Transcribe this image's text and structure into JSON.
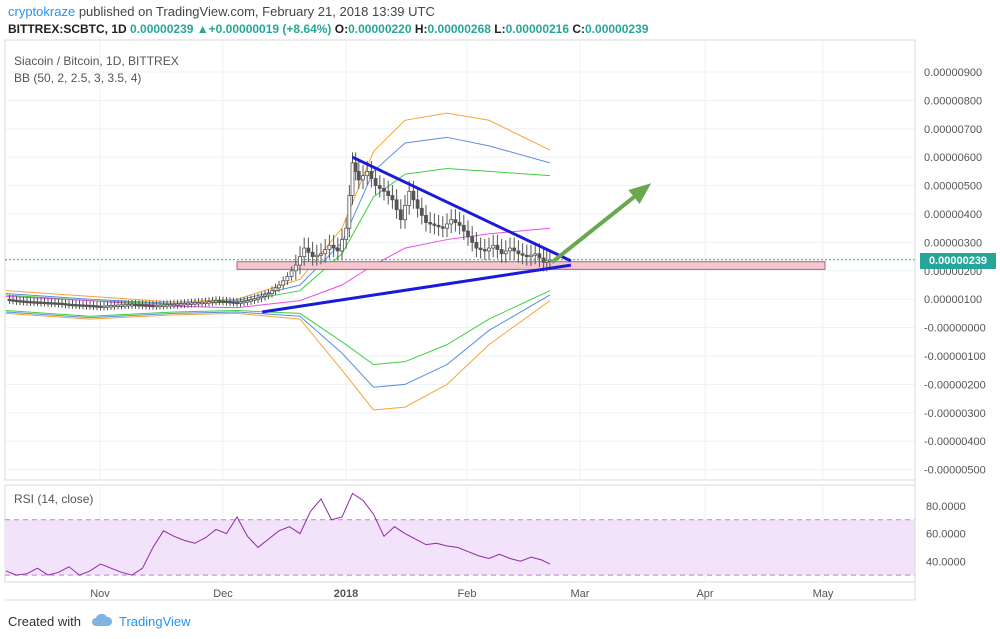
{
  "header": {
    "author": "cryptokraze",
    "published": "published on TradingView.com, February 21, 2018 13:39 UTC",
    "symbol": "BITTREX:SCBTC, 1D",
    "last": "0.00000239",
    "change": "+0.00000019 (+8.64%)",
    "o_label": "O:",
    "o": "0.00000220",
    "h_label": "H:",
    "h": "0.00000268",
    "l_label": "L:",
    "l": "0.00000216",
    "c_label": "C:",
    "c": "0.00000239"
  },
  "pane": {
    "title": "Siacoin / Bitcoin, 1D, BITTREX",
    "indicator": "BB (50, 2, 2.5, 3, 3.5, 4)",
    "rsi_label": "RSI (14, close)"
  },
  "price_tag": "0.00000239",
  "footer": {
    "created": "Created with",
    "brand": "TradingView"
  },
  "colors": {
    "candle": "#555555",
    "trendline": "#1a1adb",
    "arrow": "#6aa84f",
    "zone_fill": "#f4c7cf",
    "zone_stroke": "#b0606e",
    "price_line": "#26a69a",
    "bb_orange": "#f5a33b",
    "bb_blue": "#5b8fdc",
    "bb_green": "#3ed13e",
    "bb_magenta": "#e84ce8",
    "rsi": "#8e2aa0",
    "rsi_band": "#f3e3fa"
  },
  "chart_data": [
    {
      "type": "candlestick",
      "title": "Siacoin / Bitcoin, 1D, BITTREX",
      "x_ticks": [
        "Nov",
        "Dec",
        "2018",
        "Feb",
        "Mar",
        "Apr",
        "May"
      ],
      "y_ticks": [
        "0.00000900",
        "0.00000800",
        "0.00000700",
        "0.00000600",
        "0.00000500",
        "0.00000400",
        "0.00000300",
        "0.00000200",
        "0.00000100",
        "-0.00000000",
        "-0.00000100",
        "-0.00000200",
        "-0.00000300",
        "-0.00000400",
        "-0.00000500"
      ],
      "ylim": [
        -5.5e-06,
        9.3e-06
      ],
      "close_series": [
        [
          0,
          1.0
        ],
        [
          5,
          0.95
        ],
        [
          10,
          0.92
        ],
        [
          15,
          0.9
        ],
        [
          20,
          0.88
        ],
        [
          25,
          0.86
        ],
        [
          30,
          0.82
        ],
        [
          35,
          0.8
        ],
        [
          40,
          0.78
        ],
        [
          45,
          0.75
        ],
        [
          50,
          0.78
        ],
        [
          55,
          0.8
        ],
        [
          60,
          0.82
        ],
        [
          65,
          0.8
        ],
        [
          70,
          0.78
        ],
        [
          75,
          0.8
        ],
        [
          80,
          0.82
        ],
        [
          85,
          0.85
        ],
        [
          90,
          0.88
        ],
        [
          95,
          0.9
        ],
        [
          100,
          0.95
        ],
        [
          105,
          0.92
        ],
        [
          110,
          0.88
        ],
        [
          115,
          0.95
        ],
        [
          120,
          1.05
        ],
        [
          125,
          1.2
        ],
        [
          130,
          1.5
        ],
        [
          134,
          1.8
        ],
        [
          138,
          2.2
        ],
        [
          142,
          2.8
        ],
        [
          146,
          2.5
        ],
        [
          150,
          2.6
        ],
        [
          154,
          2.9
        ],
        [
          158,
          2.7
        ],
        [
          162,
          3.5
        ],
        [
          165,
          5.8
        ],
        [
          168,
          5.2
        ],
        [
          172,
          5.5
        ],
        [
          176,
          5.0
        ],
        [
          180,
          4.8
        ],
        [
          184,
          4.5
        ],
        [
          188,
          3.8
        ],
        [
          192,
          4.8
        ],
        [
          196,
          4.2
        ],
        [
          200,
          3.7
        ],
        [
          204,
          3.6
        ],
        [
          208,
          3.5
        ],
        [
          212,
          3.8
        ],
        [
          216,
          3.6
        ],
        [
          220,
          3.2
        ],
        [
          224,
          2.8
        ],
        [
          228,
          2.7
        ],
        [
          232,
          2.9
        ],
        [
          236,
          2.6
        ],
        [
          240,
          2.8
        ],
        [
          244,
          2.6
        ],
        [
          248,
          2.5
        ],
        [
          252,
          2.6
        ],
        [
          256,
          2.3
        ],
        [
          259,
          2.39
        ]
      ],
      "trendlines": [
        {
          "name": "upper-trendline",
          "from": [
            165,
            6.0
          ],
          "to": [
            269,
            2.35
          ]
        },
        {
          "name": "lower-trendline",
          "from": [
            122,
            0.55
          ],
          "to": [
            269,
            2.2
          ]
        }
      ],
      "support_zone": {
        "from_x": 110,
        "to_x": 390,
        "y_low": 2.05,
        "y_high": 2.32
      },
      "projection_arrow": {
        "from": [
          260,
          2.3
        ],
        "to": [
          305,
          4.95
        ]
      },
      "bollinger": {
        "orange_upper": [
          [
            0,
            1.3
          ],
          [
            40,
            1.1
          ],
          [
            80,
            0.9
          ],
          [
            110,
            1.0
          ],
          [
            140,
            1.7
          ],
          [
            160,
            3.5
          ],
          [
            175,
            6.2
          ],
          [
            190,
            7.3
          ],
          [
            210,
            7.55
          ],
          [
            230,
            7.3
          ],
          [
            259,
            6.25
          ]
        ],
        "blue_upper": [
          [
            0,
            1.2
          ],
          [
            40,
            1.0
          ],
          [
            80,
            0.85
          ],
          [
            110,
            0.95
          ],
          [
            140,
            1.5
          ],
          [
            160,
            3.0
          ],
          [
            175,
            5.5
          ],
          [
            190,
            6.5
          ],
          [
            210,
            6.7
          ],
          [
            230,
            6.4
          ],
          [
            259,
            5.8
          ]
        ],
        "green_upper": [
          [
            0,
            1.15
          ],
          [
            40,
            0.95
          ],
          [
            80,
            0.82
          ],
          [
            110,
            0.9
          ],
          [
            140,
            1.3
          ],
          [
            160,
            2.6
          ],
          [
            175,
            4.6
          ],
          [
            190,
            5.4
          ],
          [
            210,
            5.6
          ],
          [
            230,
            5.5
          ],
          [
            259,
            5.35
          ]
        ],
        "magenta_mid": [
          [
            0,
            1.1
          ],
          [
            40,
            0.95
          ],
          [
            80,
            0.75
          ],
          [
            110,
            0.7
          ],
          [
            140,
            0.95
          ],
          [
            160,
            1.5
          ],
          [
            175,
            2.2
          ],
          [
            190,
            2.8
          ],
          [
            210,
            3.1
          ],
          [
            230,
            3.3
          ],
          [
            259,
            3.5
          ]
        ],
        "green_lower": [
          [
            0,
            0.6
          ],
          [
            40,
            0.4
          ],
          [
            80,
            0.55
          ],
          [
            110,
            0.6
          ],
          [
            140,
            0.5
          ],
          [
            160,
            -0.5
          ],
          [
            175,
            -1.3
          ],
          [
            190,
            -1.2
          ],
          [
            210,
            -0.6
          ],
          [
            230,
            0.3
          ],
          [
            259,
            1.3
          ]
        ],
        "blue_lower": [
          [
            0,
            0.55
          ],
          [
            40,
            0.35
          ],
          [
            80,
            0.5
          ],
          [
            110,
            0.55
          ],
          [
            140,
            0.4
          ],
          [
            160,
            -0.9
          ],
          [
            175,
            -2.1
          ],
          [
            190,
            -2.0
          ],
          [
            210,
            -1.3
          ],
          [
            230,
            -0.1
          ],
          [
            259,
            1.15
          ]
        ],
        "orange_lower": [
          [
            0,
            0.5
          ],
          [
            40,
            0.3
          ],
          [
            80,
            0.45
          ],
          [
            110,
            0.5
          ],
          [
            140,
            0.3
          ],
          [
            160,
            -1.5
          ],
          [
            175,
            -2.9
          ],
          [
            190,
            -2.8
          ],
          [
            210,
            -2.0
          ],
          [
            230,
            -0.6
          ],
          [
            259,
            0.95
          ]
        ]
      }
    },
    {
      "type": "line",
      "title": "RSI (14, close)",
      "y_ticks": [
        "80.0000",
        "60.0000",
        "40.0000"
      ],
      "ylim": [
        20,
        92
      ],
      "bands": [
        30,
        70
      ],
      "series": [
        [
          0,
          33
        ],
        [
          5,
          30
        ],
        [
          10,
          31
        ],
        [
          15,
          35
        ],
        [
          20,
          30
        ],
        [
          25,
          32
        ],
        [
          30,
          36
        ],
        [
          35,
          30
        ],
        [
          40,
          33
        ],
        [
          45,
          38
        ],
        [
          50,
          35
        ],
        [
          55,
          32
        ],
        [
          60,
          30
        ],
        [
          65,
          35
        ],
        [
          70,
          50
        ],
        [
          75,
          62
        ],
        [
          80,
          58
        ],
        [
          85,
          55
        ],
        [
          90,
          53
        ],
        [
          95,
          57
        ],
        [
          100,
          63
        ],
        [
          105,
          60
        ],
        [
          110,
          72
        ],
        [
          115,
          58
        ],
        [
          120,
          50
        ],
        [
          125,
          56
        ],
        [
          130,
          62
        ],
        [
          135,
          65
        ],
        [
          140,
          60
        ],
        [
          145,
          76
        ],
        [
          150,
          85
        ],
        [
          155,
          70
        ],
        [
          160,
          72
        ],
        [
          165,
          89
        ],
        [
          170,
          84
        ],
        [
          175,
          74
        ],
        [
          180,
          58
        ],
        [
          185,
          65
        ],
        [
          190,
          60
        ],
        [
          195,
          56
        ],
        [
          200,
          52
        ],
        [
          205,
          53
        ],
        [
          210,
          51
        ],
        [
          215,
          50
        ],
        [
          220,
          47
        ],
        [
          225,
          44
        ],
        [
          230,
          42
        ],
        [
          235,
          45
        ],
        [
          240,
          42
        ],
        [
          245,
          40
        ],
        [
          250,
          43
        ],
        [
          255,
          41
        ],
        [
          259,
          38
        ]
      ]
    }
  ]
}
